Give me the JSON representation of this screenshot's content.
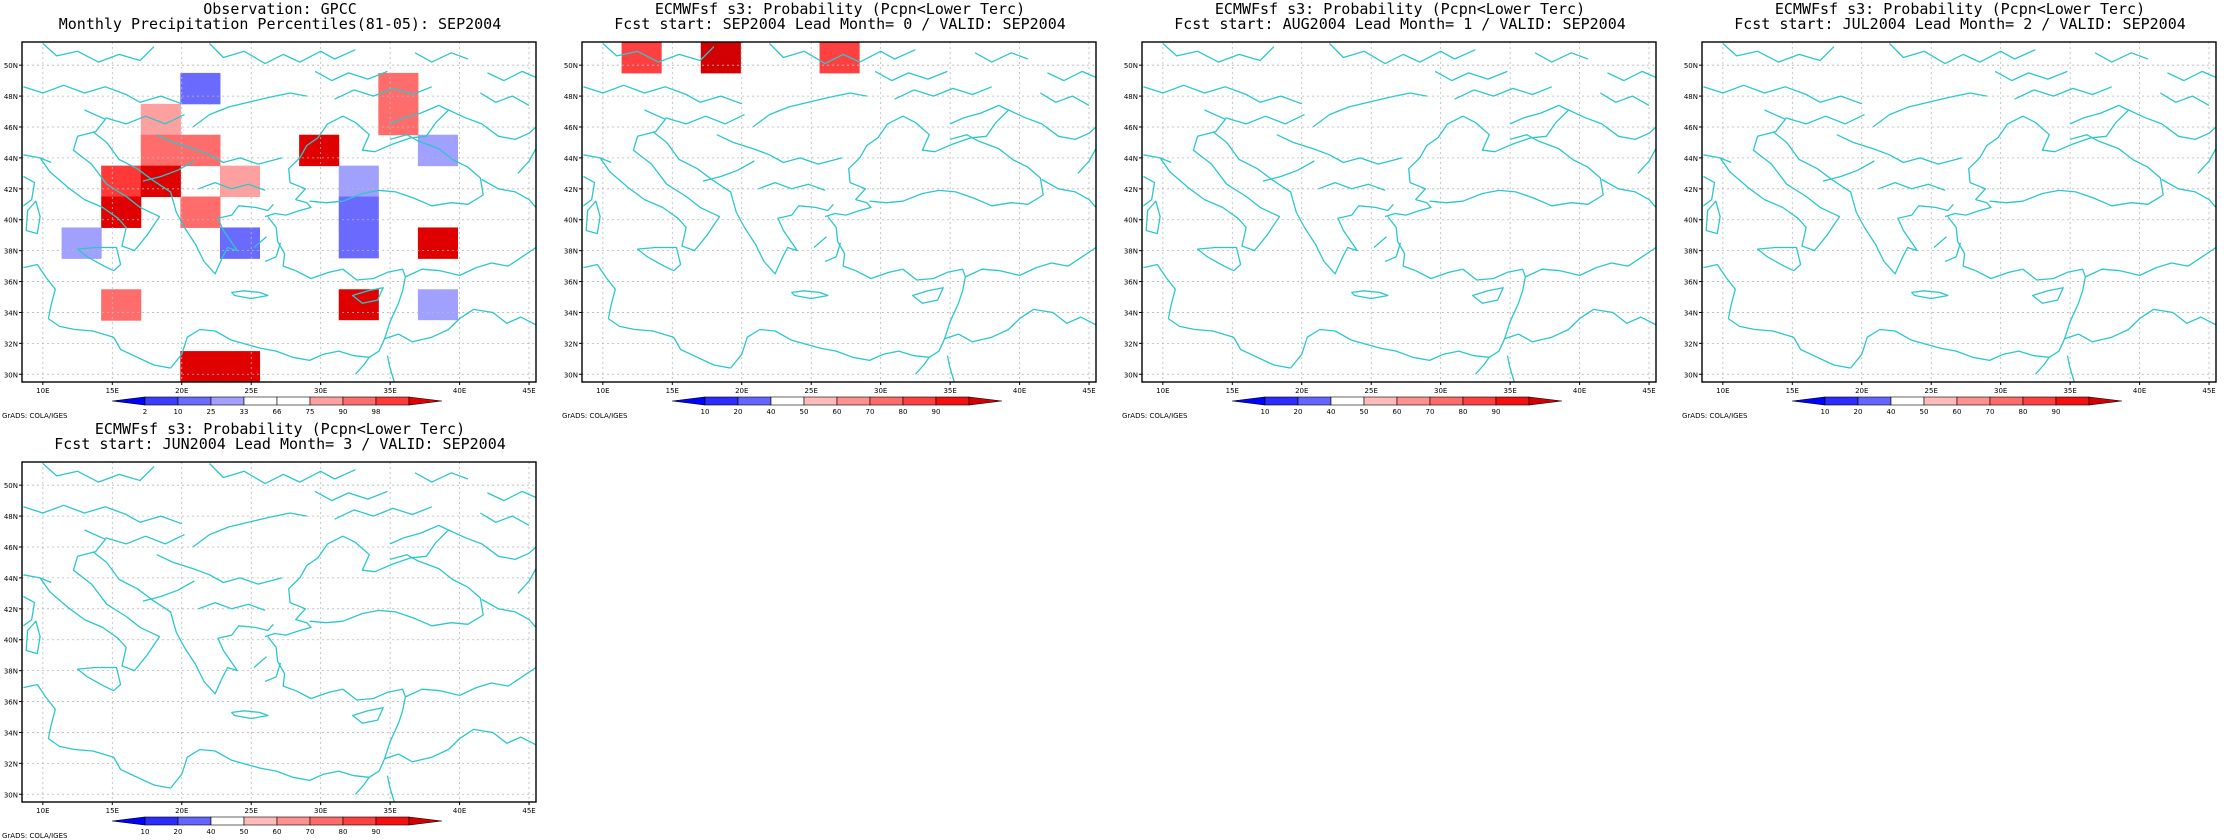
{
  "lat_labels": [
    "30N",
    "32N",
    "34N",
    "36N",
    "38N",
    "40N",
    "42N",
    "44N",
    "46N",
    "48N",
    "50N"
  ],
  "lon_labels": [
    "10E",
    "15E",
    "20E",
    "25E",
    "30E",
    "35E",
    "40E",
    "45E"
  ],
  "credit": "GrADS: COLA/IGES",
  "colors": {
    "coast": "#2ec7c9",
    "grid": "#b8b8b8",
    "obs_scale": [
      "#0000ff",
      "#3c3cff",
      "#6a6aff",
      "#a0a0ff",
      "#ffffff",
      "#ffffff",
      "#ffa0a0",
      "#ff6c6c",
      "#ff3838",
      "#e00000"
    ],
    "prob_scale": [
      "#0000ff",
      "#2c2cff",
      "#6464ff",
      "#ffffff",
      "#ffbaba",
      "#ff9090",
      "#ff6a6a",
      "#ff4040",
      "#f41010",
      "#d20000"
    ]
  },
  "panels": [
    {
      "id": "obs",
      "title_line1": "Observation: GPCC",
      "title_line2": "Monthly Precipitation Percentiles(81-05): SEP2004",
      "scale": "obs",
      "colorbar_labels": [
        "2",
        "10",
        "25",
        "33",
        "66",
        "75",
        "90",
        "98"
      ],
      "grid": [
        "...........",
        "....2....7.",
        "...6.....7.",
        "...77..9..3",
        "..89.6..3..",
        "..9.7...2..",
        ".3...2..2.9",
        "..4.....4..",
        "..7...5.9.3",
        "........4.4",
        "....99....."
      ]
    },
    {
      "id": "lead0",
      "title_line1": "ECMWFsf s3: Probability (Pcpn<Lower Terc)",
      "title_line2": "Fcst start: SEP2004  Lead Month= 0 / VALID: SEP2004",
      "scale": "prob",
      "colorbar_labels": [
        "10",
        "20",
        "40",
        "50",
        "60",
        "70",
        "80",
        "90"
      ],
      "grid": [
        ".7.9..7......",
        "..",
        "",
        "",
        "",
        "",
        "",
        "",
        "",
        "",
        ""
      ]
    },
    {
      "id": "lead1",
      "title_line1": "ECMWFsf s3: Probability (Pcpn<Lower Terc)",
      "title_line2": "Fcst start: AUG2004  Lead Month= 1 / VALID: SEP2004",
      "scale": "prob",
      "colorbar_labels": [
        "10",
        "20",
        "40",
        "50",
        "60",
        "70",
        "80",
        "90"
      ],
      "grid": []
    },
    {
      "id": "lead2",
      "title_line1": "ECMWFsf s3: Probability (Pcpn<Lower Terc)",
      "title_line2": "Fcst start: JUL2004  Lead Month= 2 / VALID: SEP2004",
      "scale": "prob",
      "colorbar_labels": [
        "10",
        "20",
        "40",
        "50",
        "60",
        "70",
        "80",
        "90"
      ],
      "grid": []
    },
    {
      "id": "lead3",
      "title_line1": "ECMWFsf s3: Probability (Pcpn<Lower Terc)",
      "title_line2": "Fcst start: JUN2004  Lead Month= 3 / VALID: SEP2004",
      "scale": "prob",
      "colorbar_labels": [
        "10",
        "20",
        "40",
        "50",
        "60",
        "70",
        "80",
        "90"
      ],
      "grid": []
    }
  ]
}
